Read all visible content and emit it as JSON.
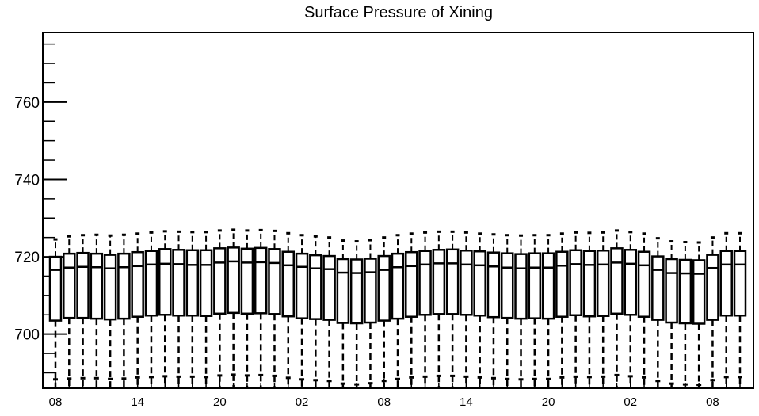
{
  "chart_data": {
    "type": "box",
    "title": "Surface Pressure of Xining",
    "xlabel": "",
    "ylabel": "",
    "ylim": [
      686,
      778
    ],
    "y_ticks": [
      700,
      720,
      740,
      760
    ],
    "x_tick_labels": [
      "08",
      "14",
      "20",
      "02",
      "08",
      "14",
      "20",
      "02",
      "08"
    ],
    "x_tick_box_index": [
      0,
      3,
      6,
      9,
      12,
      15,
      18,
      21,
      24
    ],
    "grid": false,
    "legend": "none",
    "series": [
      {
        "q1": [
          703.5,
          704.2,
          704.2,
          704.0,
          703.8,
          704.0,
          704.5,
          704.8,
          705.0,
          704.8,
          704.8,
          704.7,
          705.3,
          705.5,
          705.3,
          705.4,
          705.2,
          704.6,
          704.1,
          703.9,
          703.7,
          702.9,
          702.8,
          703.0,
          703.5,
          704.0,
          704.5,
          705.0,
          705.2,
          705.2,
          705.0,
          704.8,
          704.4,
          704.2,
          704.0,
          704.1,
          704.0,
          704.5,
          704.9,
          704.6,
          704.7,
          705.3,
          705.0,
          704.5,
          703.7,
          703.0,
          702.8,
          702.7,
          703.7,
          704.8,
          704.8
        ],
        "median": [
          716.6,
          717.2,
          717.4,
          717.3,
          717.0,
          717.3,
          717.6,
          718.0,
          718.2,
          718.1,
          717.9,
          717.9,
          718.5,
          718.8,
          718.5,
          718.6,
          718.4,
          717.8,
          717.4,
          717.0,
          716.8,
          715.9,
          715.8,
          716.0,
          716.6,
          717.3,
          717.6,
          718.0,
          718.3,
          718.3,
          718.0,
          717.8,
          717.5,
          717.2,
          717.0,
          717.2,
          717.2,
          717.7,
          718.1,
          717.9,
          718.0,
          718.5,
          718.2,
          717.8,
          716.6,
          715.8,
          715.7,
          715.6,
          717.1,
          718.0,
          718.0
        ],
        "q3": [
          720.0,
          720.8,
          721.0,
          720.8,
          720.5,
          720.8,
          721.2,
          721.5,
          722.0,
          721.8,
          721.7,
          721.7,
          722.2,
          722.4,
          722.1,
          722.3,
          722.0,
          721.3,
          720.8,
          720.4,
          720.2,
          719.4,
          719.3,
          719.5,
          720.2,
          720.8,
          721.2,
          721.5,
          721.8,
          721.9,
          721.6,
          721.4,
          721.1,
          720.9,
          720.7,
          720.9,
          720.9,
          721.3,
          721.7,
          721.5,
          721.6,
          722.2,
          721.8,
          721.3,
          720.1,
          719.4,
          719.2,
          719.1,
          720.5,
          721.5,
          721.5
        ],
        "whisker_high": [
          724.5,
          725.3,
          725.6,
          725.7,
          725.5,
          725.7,
          726.0,
          726.3,
          726.6,
          726.5,
          726.4,
          726.4,
          726.8,
          727.0,
          726.8,
          726.9,
          726.7,
          726.1,
          725.6,
          725.3,
          725.0,
          724.2,
          724.0,
          724.3,
          725.0,
          725.6,
          726.0,
          726.3,
          726.5,
          726.5,
          726.3,
          726.0,
          725.8,
          725.6,
          725.5,
          725.6,
          725.6,
          726.0,
          726.3,
          726.2,
          726.3,
          726.8,
          726.4,
          726.0,
          724.8,
          724.0,
          723.8,
          723.7,
          725.0,
          726.1,
          726.1
        ],
        "whisker_low": [
          686,
          686,
          686,
          686,
          686,
          686,
          686,
          686,
          686,
          686,
          686,
          686,
          686,
          686,
          686,
          686,
          686,
          686,
          686,
          686,
          686,
          686,
          686,
          686,
          686,
          686,
          686,
          686,
          686,
          686,
          686,
          686,
          686,
          686,
          686,
          686,
          686,
          686,
          686,
          686,
          686,
          686,
          686,
          686,
          686,
          686,
          686,
          686,
          686,
          686,
          686
        ],
        "low_marker": [
          688.3,
          688.5,
          688.6,
          688.6,
          688.4,
          688.5,
          688.8,
          688.9,
          689.1,
          689.0,
          689.0,
          688.9,
          689.3,
          689.5,
          689.3,
          689.4,
          689.2,
          688.7,
          688.3,
          688.1,
          687.9,
          687.2,
          687.0,
          687.3,
          687.9,
          688.4,
          688.8,
          689.0,
          689.2,
          689.2,
          689.0,
          688.8,
          688.6,
          688.4,
          688.3,
          688.4,
          688.4,
          688.8,
          689.0,
          688.9,
          689.0,
          689.4,
          689.1,
          688.8,
          687.9,
          687.2,
          687.0,
          686.9,
          688.1,
          688.9,
          688.9
        ]
      }
    ]
  }
}
